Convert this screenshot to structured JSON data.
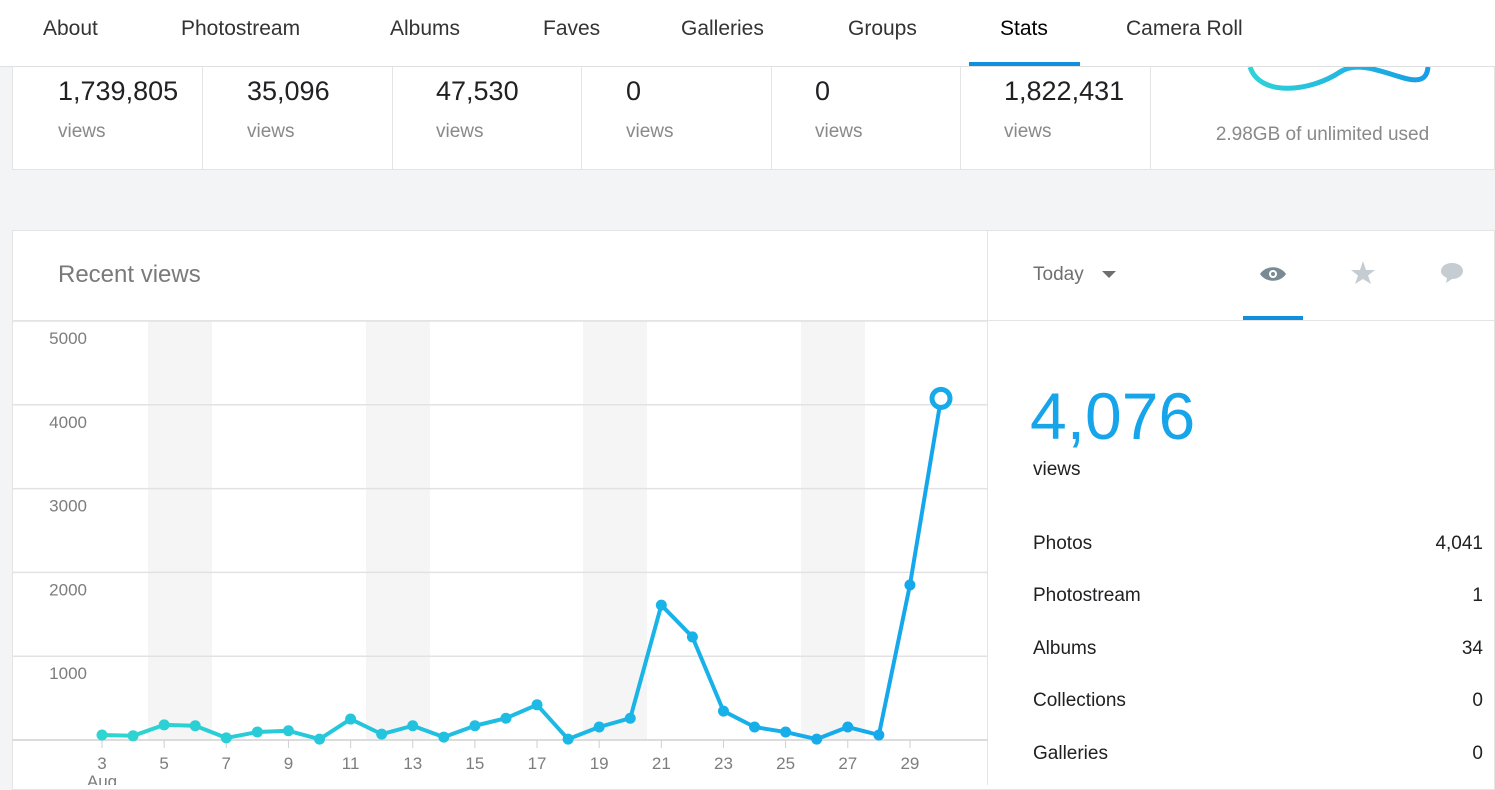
{
  "nav": {
    "tabs": [
      "About",
      "Photostream",
      "Albums",
      "Faves",
      "Galleries",
      "Groups",
      "Stats",
      "Camera Roll"
    ]
  },
  "summary": [
    {
      "value": "1,739,805",
      "unit": "views"
    },
    {
      "value": "35,096",
      "unit": "views"
    },
    {
      "value": "47,530",
      "unit": "views"
    },
    {
      "value": "0",
      "unit": "views"
    },
    {
      "value": "0",
      "unit": "views"
    },
    {
      "value": "1,822,431",
      "unit": "views"
    }
  ],
  "storage": "2.98GB of unlimited used",
  "chart_data": {
    "type": "line",
    "title": "Recent views",
    "x": [
      3,
      4,
      5,
      6,
      7,
      8,
      9,
      10,
      11,
      12,
      13,
      14,
      15,
      16,
      17,
      18,
      19,
      20,
      21,
      22,
      23,
      24,
      25,
      26,
      27,
      28,
      29,
      30
    ],
    "xticks": [
      3,
      5,
      7,
      9,
      11,
      13,
      15,
      17,
      19,
      21,
      23,
      25,
      27,
      29
    ],
    "x_month": "Aug",
    "ylim": [
      0,
      5000
    ],
    "yticks": [
      1000,
      2000,
      3000,
      4000,
      5000
    ],
    "grid": true,
    "series": [
      {
        "color": "#17aae8",
        "values": [
          60,
          50,
          180,
          170,
          25,
          95,
          110,
          10,
          250,
          70,
          170,
          35,
          170,
          260,
          420,
          10,
          155,
          260,
          1610,
          1230,
          345,
          155,
          95,
          10,
          155,
          60,
          1850,
          4076
        ]
      }
    ]
  },
  "panel": {
    "period": "Today",
    "total": "4,076",
    "total_unit": "views",
    "rows": [
      {
        "label": "Photos",
        "value": "4,041"
      },
      {
        "label": "Photostream",
        "value": "1"
      },
      {
        "label": "Albums",
        "value": "34"
      },
      {
        "label": "Collections",
        "value": "0"
      },
      {
        "label": "Galleries",
        "value": "0"
      }
    ]
  }
}
